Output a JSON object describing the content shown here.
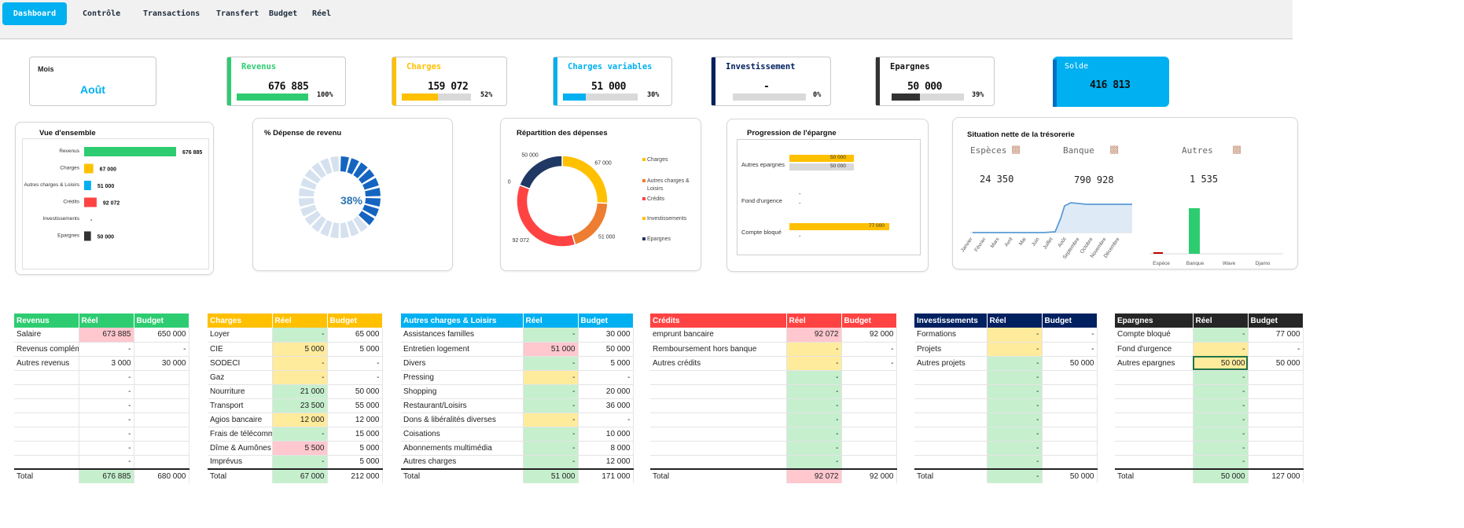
{
  "nav": {
    "tabs": [
      "Dashboard",
      "Contrôle",
      "Transactions",
      "Transfert",
      "Budget",
      "Réel"
    ]
  },
  "kpis": {
    "mois": {
      "label": "Mois",
      "value": "Août"
    },
    "revenus": {
      "label": "Revenus",
      "value": "676 885",
      "pct": "100%",
      "fraction": 1.0,
      "color": "#2ecc71"
    },
    "charges": {
      "label": "Charges",
      "value": "159 072",
      "pct": "52%",
      "fraction": 0.52,
      "color": "#ffc000"
    },
    "charges_variables": {
      "label": "Charges variables",
      "value": "51 000",
      "pct": "30%",
      "fraction": 0.3,
      "color": "#00b0f0"
    },
    "investissement": {
      "label": "Investissement",
      "value": "-",
      "pct": "0%",
      "fraction": 0.0,
      "color": "#002060"
    },
    "epargnes": {
      "label": "Epargnes",
      "value": "50 000",
      "pct": "39%",
      "fraction": 0.39,
      "color": "#333333"
    },
    "solde": {
      "label": "Solde",
      "value": "416 813"
    }
  },
  "vue_ensemble": {
    "title": "Vue d'ensemble",
    "rows": [
      {
        "label": "Revenus",
        "value": "676 885",
        "amount": 676885,
        "color": "#2ecc71"
      },
      {
        "label": "Charges",
        "value": "67 000",
        "amount": 67000,
        "color": "#ffc000"
      },
      {
        "label": "Autres charges & Loisirs",
        "value": "51 000",
        "amount": 51000,
        "color": "#00b0f0"
      },
      {
        "label": "Crédits",
        "value": "92 072",
        "amount": 92072,
        "color": "#ff4343"
      },
      {
        "label": "Investissements",
        "value": "-",
        "amount": 0,
        "color": "#002060"
      },
      {
        "label": "Epargnes",
        "value": "50 000",
        "amount": 50000,
        "color": "#333333"
      }
    ]
  },
  "depense_revenu": {
    "title": "% Dépense de revenu",
    "value": "38%",
    "fraction": 0.38
  },
  "repartition": {
    "title": "Répartition des dépenses",
    "slices": [
      {
        "label": "Charges",
        "value": "67 000",
        "amount": 67000,
        "color": "#ffc000"
      },
      {
        "label": "Autres charges & Loisirs",
        "value": "51 000",
        "amount": 51000,
        "color": "#ed7d31"
      },
      {
        "label": "Crédits",
        "value": "92 072",
        "amount": 92072,
        "color": "#ff4343"
      },
      {
        "label": "Investissements",
        "value": "0",
        "amount": 0,
        "color": "#ffc000"
      },
      {
        "label": "Epargnes",
        "value": "50 000",
        "amount": 50000,
        "color": "#1f3864"
      }
    ],
    "legend": [
      "Charges",
      "Autres charges & Loisirs",
      "Crédits",
      "Investissements",
      "Epargnes"
    ]
  },
  "progression": {
    "title": "Progression de l'épargne",
    "rows": [
      {
        "label": "Autres epargnes",
        "v1": "50 000",
        "v2": "50 000"
      },
      {
        "label": "Fond d'urgence",
        "v1": "-",
        "v2": "-"
      },
      {
        "label": "Compte bloqué",
        "v1": "77 000",
        "v2": "-"
      }
    ]
  },
  "tresorerie": {
    "title": "Situation nette de la trésorerie",
    "especes_label": "Espèces",
    "especes_value": "24 350",
    "banque_label": "Banque",
    "banque_value": "790 928",
    "autres_label": "Autres",
    "autres_value": "1 535",
    "months": [
      "Janvier",
      "Février",
      "Mars",
      "Avril",
      "Mai",
      "Juin",
      "Juillet",
      "Août",
      "Septembre",
      "Octobre",
      "Novembre",
      "Décembre"
    ],
    "bar_categories": [
      "Espèce",
      "Banque",
      "Wave",
      "Djamo"
    ]
  },
  "tables": {
    "revenus": {
      "headers": [
        "Revenus",
        "Réel",
        "Budget"
      ],
      "rows": [
        [
          "Salaire",
          "673 885",
          "650 000"
        ],
        [
          "Revenus complém",
          "-",
          "-"
        ],
        [
          "Autres revenus",
          "3 000",
          "30 000"
        ],
        [
          "",
          "-",
          ""
        ],
        [
          "",
          "-",
          ""
        ],
        [
          "",
          "-",
          ""
        ],
        [
          "",
          "-",
          ""
        ],
        [
          "",
          "-",
          ""
        ],
        [
          "",
          "-",
          ""
        ],
        [
          "",
          "-",
          ""
        ]
      ],
      "total": [
        "Total",
        "676 885",
        "680 000"
      ]
    },
    "charges": {
      "headers": [
        "Charges",
        "Réel",
        "Budget"
      ],
      "rows": [
        [
          "Loyer",
          "-",
          "65 000"
        ],
        [
          "CIE",
          "5 000",
          "5 000"
        ],
        [
          "SODECI",
          "-",
          "-"
        ],
        [
          "Gaz",
          "-",
          "-"
        ],
        [
          "Nourriture",
          "21 000",
          "50 000"
        ],
        [
          "Transport",
          "23 500",
          "55 000"
        ],
        [
          "Agios bancaire",
          "12 000",
          "12 000"
        ],
        [
          "Frais de télécomm",
          "-",
          "15 000"
        ],
        [
          "Dîme & Aumônes",
          "5 500",
          "5 000"
        ],
        [
          "Imprévus",
          "-",
          "5 000"
        ]
      ],
      "total": [
        "Total",
        "67 000",
        "212 000"
      ]
    },
    "autres": {
      "headers": [
        "Autres charges & Loisirs",
        "Réel",
        "Budget"
      ],
      "rows": [
        [
          "Assistances familles",
          "-",
          "30 000"
        ],
        [
          "Entretien logement",
          "51 000",
          "50 000"
        ],
        [
          "Divers",
          "-",
          "5 000"
        ],
        [
          "Pressing",
          "-",
          "-"
        ],
        [
          "Shopping",
          "-",
          "20 000"
        ],
        [
          "Restaurant/Loisirs",
          "-",
          "36 000"
        ],
        [
          "Dons & libéralités diverses",
          "-",
          "-"
        ],
        [
          "Coisations",
          "-",
          "10 000"
        ],
        [
          "Abonnements multimédia",
          "-",
          "8 000"
        ],
        [
          "Autres charges",
          "-",
          "12 000"
        ]
      ],
      "total": [
        "Total",
        "51 000",
        "171 000"
      ]
    },
    "credits": {
      "headers": [
        "Crédits",
        "Réel",
        "Budget"
      ],
      "rows": [
        [
          "emprunt bancaire",
          "92 072",
          "92 000"
        ],
        [
          "Remboursement hors banque",
          "-",
          "-"
        ],
        [
          "Autres crédits",
          "-",
          "-"
        ],
        [
          "",
          "-",
          ""
        ],
        [
          "",
          "-",
          ""
        ],
        [
          "",
          "-",
          ""
        ],
        [
          "",
          "-",
          ""
        ],
        [
          "",
          "-",
          ""
        ],
        [
          "",
          "-",
          ""
        ],
        [
          "",
          "-",
          ""
        ]
      ],
      "total": [
        "Total",
        "92 072",
        "92 000"
      ]
    },
    "investissements": {
      "headers": [
        "Investissements",
        "Réel",
        "Budget"
      ],
      "rows": [
        [
          "Formations",
          "-",
          "-"
        ],
        [
          "Projets",
          "-",
          "-"
        ],
        [
          "Autres projets",
          "-",
          "50 000"
        ],
        [
          "",
          "-",
          ""
        ],
        [
          "",
          "-",
          ""
        ],
        [
          "",
          "-",
          ""
        ],
        [
          "",
          "-",
          ""
        ],
        [
          "",
          "-",
          ""
        ],
        [
          "",
          "-",
          ""
        ],
        [
          "",
          "-",
          ""
        ]
      ],
      "total": [
        "Total",
        "-",
        "50 000"
      ]
    },
    "epargnes": {
      "headers": [
        "Epargnes",
        "Réel",
        "Budget"
      ],
      "rows": [
        [
          "Compte bloqué",
          "-",
          "77 000"
        ],
        [
          "Fond d'urgence",
          "-",
          "-"
        ],
        [
          "Autres epargnes",
          "50 000",
          "50 000"
        ],
        [
          "",
          "-",
          ""
        ],
        [
          "",
          "-",
          ""
        ],
        [
          "",
          "-",
          ""
        ],
        [
          "",
          "-",
          ""
        ],
        [
          "",
          "-",
          ""
        ],
        [
          "",
          "-",
          ""
        ],
        [
          "",
          "-",
          ""
        ]
      ],
      "total": [
        "Total",
        "50 000",
        "127 000"
      ]
    }
  }
}
